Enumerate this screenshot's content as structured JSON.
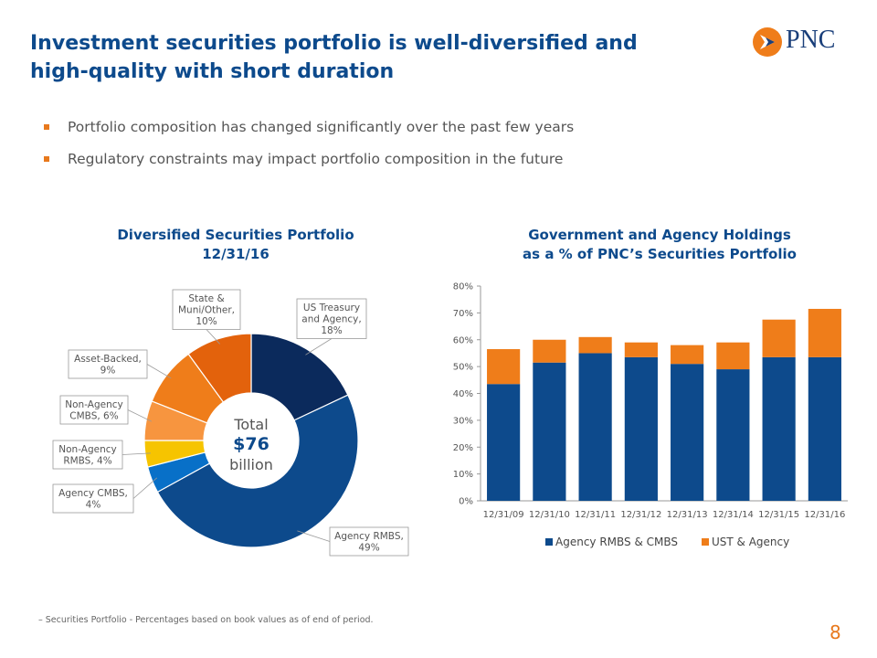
{
  "slide": {
    "title": "Investment securities portfolio is well-diversified and high-quality with short duration",
    "bullets": [
      "Portfolio composition has changed significantly over the past few years",
      "Regulatory constraints may impact portfolio composition in the future"
    ],
    "footnote": "–  Securities Portfolio - Percentages based on book values as of end of period.",
    "page_number": "8",
    "logo_text": "PNC",
    "colors": {
      "title": "#0d4a8c",
      "accent": "#e8791d"
    }
  },
  "chart_data": [
    {
      "type": "pie",
      "variant": "donut",
      "title_line1": "Diversified Securities Portfolio",
      "title_line2": "12/31/16",
      "center_label": {
        "line1": "Total",
        "line2": "$76",
        "line3": "billion"
      },
      "slices": [
        {
          "label_lines": [
            "US Treasury",
            "and Agency,",
            "18%"
          ],
          "value": 18,
          "color": "#0b2a5c"
        },
        {
          "label_lines": [
            "Agency RMBS,",
            "49%"
          ],
          "value": 49,
          "color": "#0d4a8c"
        },
        {
          "label_lines": [
            "Agency CMBS,",
            "4%"
          ],
          "value": 4,
          "color": "#0870c8"
        },
        {
          "label_lines": [
            "Non-Agency",
            "RMBS, 4%"
          ],
          "value": 4,
          "color": "#f6c400"
        },
        {
          "label_lines": [
            "Non-Agency",
            "CMBS, 6%"
          ],
          "value": 6,
          "color": "#f7953f"
        },
        {
          "label_lines": [
            "Asset-Backed,",
            "9%"
          ],
          "value": 9,
          "color": "#ef7d1a"
        },
        {
          "label_lines": [
            "State &",
            "Muni/Other,",
            "10%"
          ],
          "value": 10,
          "color": "#e3620c"
        }
      ]
    },
    {
      "type": "bar",
      "stacked": true,
      "title_line1": "Government and Agency Holdings",
      "title_line2": "as a % of PNC’s Securities Portfolio",
      "categories": [
        "12/31/09",
        "12/31/10",
        "12/31/11",
        "12/31/12",
        "12/31/13",
        "12/31/14",
        "12/31/15",
        "12/31/16"
      ],
      "series": [
        {
          "name": "Agency RMBS & CMBS",
          "color": "#0d4a8c",
          "values": [
            43.5,
            51.5,
            55,
            53.5,
            51,
            49,
            53.5,
            53.5
          ]
        },
        {
          "name": "UST & Agency",
          "color": "#ef7d1a",
          "values": [
            13,
            8.5,
            6,
            5.5,
            7,
            10,
            14,
            18
          ]
        }
      ],
      "yticks": [
        "0%",
        "10%",
        "20%",
        "30%",
        "40%",
        "50%",
        "60%",
        "70%",
        "80%"
      ],
      "ylim": [
        0,
        80
      ]
    }
  ]
}
